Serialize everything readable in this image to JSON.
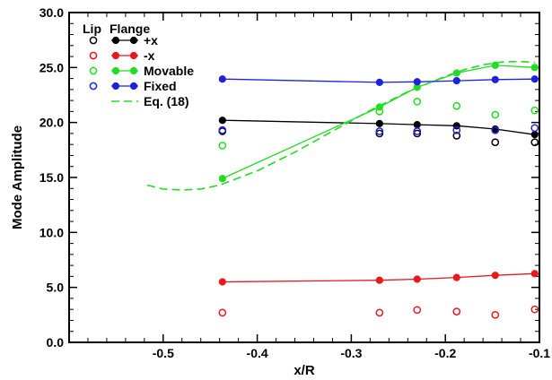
{
  "chart_data": {
    "type": "scatter",
    "xlabel": "x/R",
    "ylabel": "Mode Amplitude",
    "xlim": [
      -0.6,
      -0.1
    ],
    "ylim": [
      0.0,
      30.0
    ],
    "x_ticks": [
      -0.5,
      -0.4,
      -0.3,
      -0.2,
      -0.1
    ],
    "x_tick_labels": [
      "-0.5",
      "-0.4",
      "-0.3",
      "-0.2",
      "-0.1"
    ],
    "y_ticks": [
      0,
      5,
      10,
      15,
      20,
      25,
      30
    ],
    "y_tick_labels": [
      "0.0",
      "5.0",
      "10.0",
      "15.0",
      "20.0",
      "25.0",
      "30.0"
    ],
    "grid": false,
    "legend": {
      "position": "top-left",
      "headers": [
        "Lip",
        "Flange"
      ],
      "entries": [
        {
          "label": "+x",
          "color": "#000000"
        },
        {
          "label": "-x",
          "color": "#e8181e"
        },
        {
          "label": "Movable",
          "color": "#22dd22"
        },
        {
          "label": "Fixed",
          "color": "#1e22dd"
        },
        {
          "label": "Eq. (18)",
          "color": "#22dd22"
        }
      ]
    },
    "series": [
      {
        "name": "+x",
        "group": "Flange",
        "color": "#000000",
        "marker": "filled",
        "line": true,
        "x": [
          -0.437,
          -0.27,
          -0.23,
          -0.188,
          -0.147,
          -0.105
        ],
        "y": [
          20.2,
          19.9,
          19.8,
          19.7,
          19.4,
          18.9
        ]
      },
      {
        "name": "-x",
        "group": "Flange",
        "color": "#e8181e",
        "marker": "filled",
        "line": true,
        "x": [
          -0.437,
          -0.27,
          -0.23,
          -0.188,
          -0.147,
          -0.105
        ],
        "y": [
          5.5,
          5.65,
          5.75,
          5.9,
          6.1,
          6.25
        ]
      },
      {
        "name": "Movable",
        "group": "Flange",
        "color": "#22dd22",
        "marker": "filled",
        "line": true,
        "x": [
          -0.437,
          -0.27,
          -0.23,
          -0.188,
          -0.147,
          -0.105
        ],
        "y": [
          14.9,
          21.4,
          23.2,
          24.5,
          25.2,
          25.0
        ]
      },
      {
        "name": "Fixed",
        "group": "Flange",
        "color": "#1e22dd",
        "marker": "filled",
        "line": true,
        "x": [
          -0.437,
          -0.27,
          -0.23,
          -0.188,
          -0.147,
          -0.105
        ],
        "y": [
          23.95,
          23.65,
          23.7,
          23.8,
          23.9,
          23.95
        ]
      },
      {
        "name": "+x",
        "group": "Lip",
        "color": "#000000",
        "marker": "open",
        "line": false,
        "x": [
          -0.437,
          -0.27,
          -0.23,
          -0.188,
          -0.147,
          -0.105
        ],
        "y": [
          19.2,
          19.0,
          19.0,
          18.8,
          18.2,
          18.2
        ]
      },
      {
        "name": "-x",
        "group": "Lip",
        "color": "#e8181e",
        "marker": "open",
        "line": false,
        "x": [
          -0.437,
          -0.27,
          -0.23,
          -0.188,
          -0.147,
          -0.105
        ],
        "y": [
          2.7,
          2.7,
          2.95,
          2.8,
          2.5,
          3.0
        ]
      },
      {
        "name": "Movable",
        "group": "Lip",
        "color": "#22dd22",
        "marker": "open",
        "line": false,
        "x": [
          -0.437,
          -0.27,
          -0.23,
          -0.188,
          -0.147,
          -0.105
        ],
        "y": [
          17.9,
          21.0,
          21.9,
          21.5,
          20.7,
          21.1
        ]
      },
      {
        "name": "Fixed",
        "group": "Lip",
        "color": "#1e22dd",
        "marker": "open",
        "line": false,
        "x": [
          -0.437,
          -0.27,
          -0.23,
          -0.188,
          -0.147,
          -0.105
        ],
        "y": [
          19.3,
          19.2,
          19.2,
          19.3,
          19.3,
          19.5
        ]
      },
      {
        "name": "Eq. (18)",
        "group": "",
        "color": "#22dd22",
        "marker": "none",
        "line": "dashed",
        "x": [
          -0.517,
          -0.5,
          -0.48,
          -0.46,
          -0.44,
          -0.4,
          -0.36,
          -0.32,
          -0.28,
          -0.24,
          -0.2,
          -0.18,
          -0.16,
          -0.14,
          -0.12,
          -0.105
        ],
        "y": [
          14.3,
          13.95,
          13.85,
          13.95,
          14.3,
          15.6,
          17.3,
          19.2,
          21.1,
          22.8,
          24.2,
          24.8,
          25.25,
          25.5,
          25.55,
          25.45
        ]
      }
    ]
  }
}
